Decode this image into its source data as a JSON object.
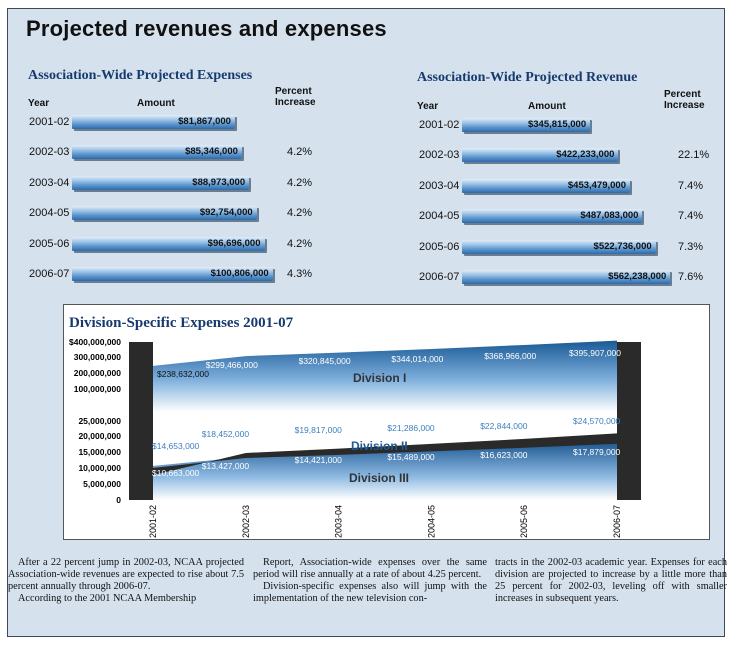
{
  "page_title": "Projected revenues and expenses",
  "chart_data": [
    {
      "type": "bar",
      "title": "Association-Wide Projected Expenses",
      "col_year": "Year",
      "col_amount": "Amount",
      "col_pct_line1": "Percent",
      "col_pct_line2": "Increase",
      "categories": [
        "2001-02",
        "2002-03",
        "2003-04",
        "2004-05",
        "2005-06",
        "2006-07"
      ],
      "values": [
        81867000,
        85346000,
        88973000,
        92754000,
        96696000,
        100806000
      ],
      "value_labels": [
        "$81,867,000",
        "$85,346,000",
        "$88,973,000",
        "$92,754,000",
        "$96,696,000",
        "$100,806,000"
      ],
      "percent_increase": [
        "",
        "4.2%",
        "4.2%",
        "4.2%",
        "4.2%",
        "4.3%"
      ],
      "xlim": [
        0,
        110000000
      ]
    },
    {
      "type": "bar",
      "title": "Association-Wide Projected Revenue",
      "col_year": "Year",
      "col_amount": "Amount",
      "col_pct_line1": "Percent",
      "col_pct_line2": "Increase",
      "categories": [
        "2001-02",
        "2002-03",
        "2003-04",
        "2004-05",
        "2005-06",
        "2006-07"
      ],
      "values": [
        345815000,
        422233000,
        453479000,
        487083000,
        522736000,
        562238000
      ],
      "value_labels": [
        "$345,815,000",
        "$422,233,000",
        "$453,479,000",
        "$487,083,000",
        "$522,736,000",
        "$562,238,000"
      ],
      "percent_increase": [
        "",
        "22.1%",
        "7.4%",
        "7.4%",
        "7.3%",
        "7.6%"
      ],
      "xlim": [
        0,
        610000000
      ]
    },
    {
      "type": "area",
      "title": "Division-Specific Expenses 2001-07",
      "categories": [
        "2001-02",
        "2002-03",
        "2003-04",
        "2004-05",
        "2005-06",
        "2006-07"
      ],
      "upper_ticks": [
        "$400,000,000",
        "300,000,000",
        "200,000,000",
        "100,000,000"
      ],
      "lower_ticks": [
        "25,000,000",
        "20,000,000",
        "15,000,000",
        "10,000,000",
        "5,000,000",
        "0"
      ],
      "series": [
        {
          "name": "Division I",
          "values": [
            238632000,
            299466000,
            320845000,
            344014000,
            368966000,
            395907000
          ],
          "labels": [
            "$238,632,000",
            "$299,466,000",
            "$320,845,000",
            "$344,014,000",
            "$368,966,000",
            "$395,907,000"
          ]
        },
        {
          "name": "Division II",
          "values": [
            14653000,
            18452000,
            19817000,
            21286000,
            22844000,
            24570000
          ],
          "labels": [
            "$14,653,000",
            "$18,452,000",
            "$19,817,000",
            "$21,286,000",
            "$22,844,000",
            "$24,570,000"
          ]
        },
        {
          "name": "Division III",
          "values": [
            10663000,
            13427000,
            14421000,
            15489000,
            16623000,
            17879000
          ],
          "labels": [
            "$10,663,000",
            "$13,427,000",
            "$14,421,000",
            "$15,489,000",
            "$16,623,000",
            "$17,879,000"
          ]
        }
      ],
      "colors": {
        "div1": "#1f5a93",
        "div2": "#ffffff",
        "div3": "#1f5a93",
        "band": "#2a2a2a"
      }
    }
  ],
  "text_columns": [
    {
      "paragraphs": [
        "After a 22 percent jump in 2002-03, NCAA projected Association-wide revenues are expected to rise about 7.5 percent annually through 2006-07.",
        "According to the 2001 NCAA Membership"
      ]
    },
    {
      "paragraphs": [
        "Report, Association-wide expenses over the same period will rise annually at a rate of about 4.25 percent.",
        "Division-specific expenses also will jump with the implementation of the new television con-"
      ]
    },
    {
      "paragraphs": [
        "tracts in the 2002-03 academic year. Expenses for each division are projected to increase by a little more than 25 percent for 2002-03, leveling off with smaller increases in subsequent years."
      ]
    }
  ]
}
